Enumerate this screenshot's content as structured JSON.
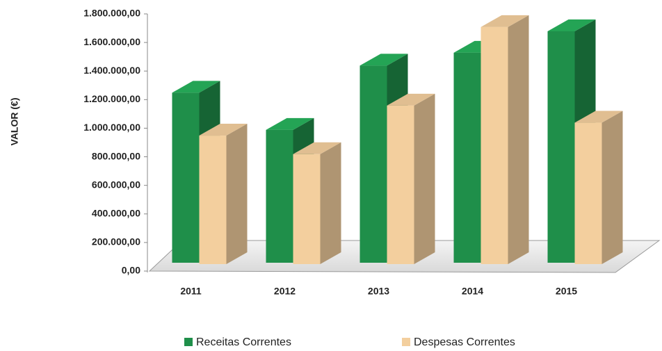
{
  "chart_data": {
    "type": "bar3d",
    "y_axis_label": "VALOR (€)",
    "categories": [
      "2011",
      "2012",
      "2013",
      "2014",
      "2015"
    ],
    "series": [
      {
        "name": "Receitas Correntes",
        "color": "#1f8f4a",
        "values": [
          1190000,
          930000,
          1380000,
          1470000,
          1620000
        ]
      },
      {
        "name": "Despesas Correntes",
        "color": "#f3cf9e",
        "values": [
          890000,
          760000,
          1100000,
          1650000,
          980000
        ]
      }
    ],
    "ylim": [
      0,
      1800000
    ],
    "yticks": [
      {
        "value": 0,
        "label": "0,00"
      },
      {
        "value": 200000,
        "label": "200.000,00"
      },
      {
        "value": 400000,
        "label": "400.000,00"
      },
      {
        "value": 600000,
        "label": "600.000,00"
      },
      {
        "value": 800000,
        "label": "800.000,00"
      },
      {
        "value": 1000000,
        "label": "1.000.000,00"
      },
      {
        "value": 1200000,
        "label": "1.200.000,00"
      },
      {
        "value": 1400000,
        "label": "1.400.000,00"
      },
      {
        "value": 1600000,
        "label": "1.600.000,00"
      },
      {
        "value": 1800000,
        "label": "1.800.000,00"
      }
    ]
  }
}
